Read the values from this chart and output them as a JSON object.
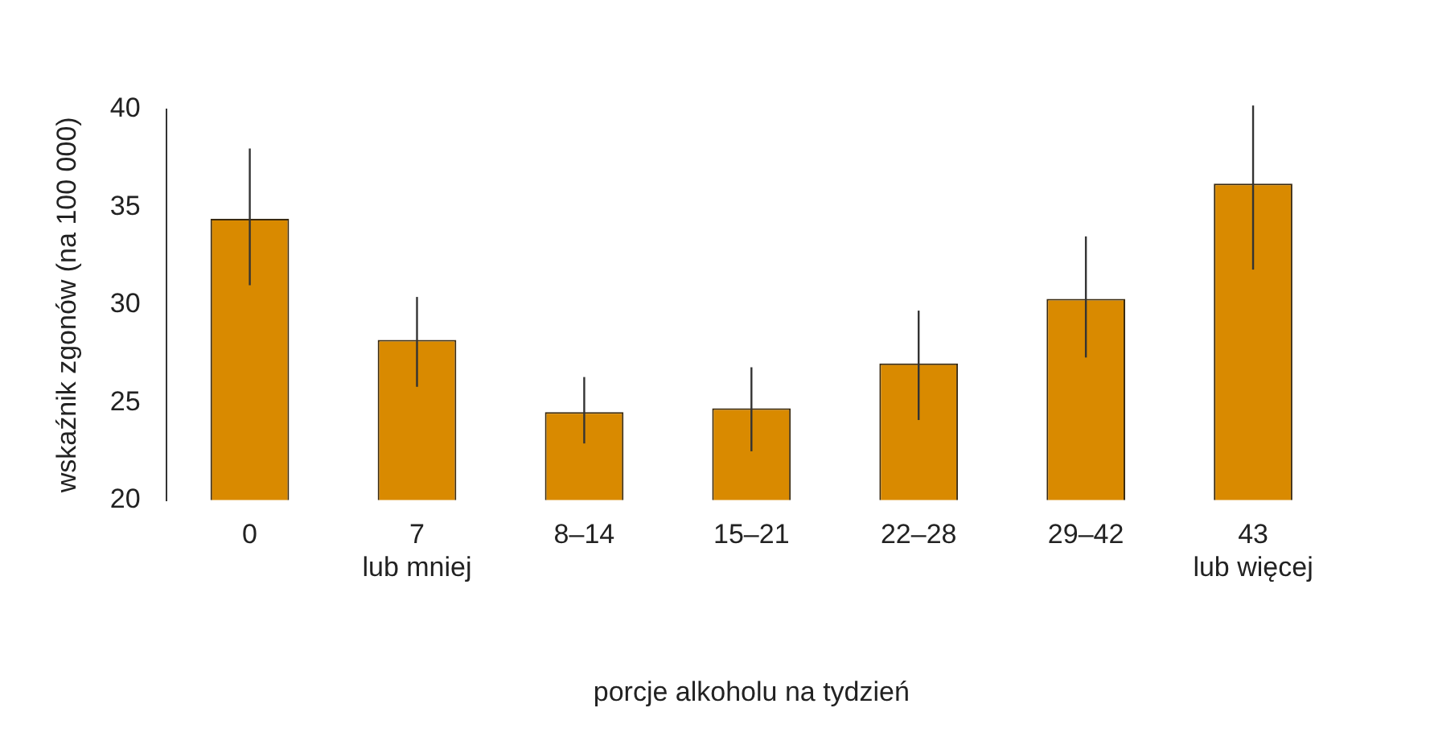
{
  "chart_data": {
    "type": "bar",
    "xlabel": "porcje alkoholu na tydzień",
    "ylabel": "wskaźnik zgonów (na 100 000)",
    "categories": [
      "0",
      "7\nlub mniej",
      "8–14",
      "15–21",
      "22–28",
      "29–42",
      "43\nlub więcej"
    ],
    "series": [
      {
        "color": "#d98a00",
        "values": [
          34.4,
          28.2,
          24.5,
          24.7,
          27.0,
          30.3,
          36.2
        ],
        "errors": [
          [
            31.0,
            38.0
          ],
          [
            25.8,
            30.4
          ],
          [
            22.9,
            26.3
          ],
          [
            22.5,
            26.8
          ],
          [
            24.1,
            29.7
          ],
          [
            27.3,
            33.5
          ],
          [
            31.8,
            40.2
          ]
        ]
      }
    ],
    "ylim": [
      20,
      40
    ],
    "yticks": [
      20,
      25,
      30,
      35,
      40
    ],
    "grid": false,
    "legend": false
  }
}
